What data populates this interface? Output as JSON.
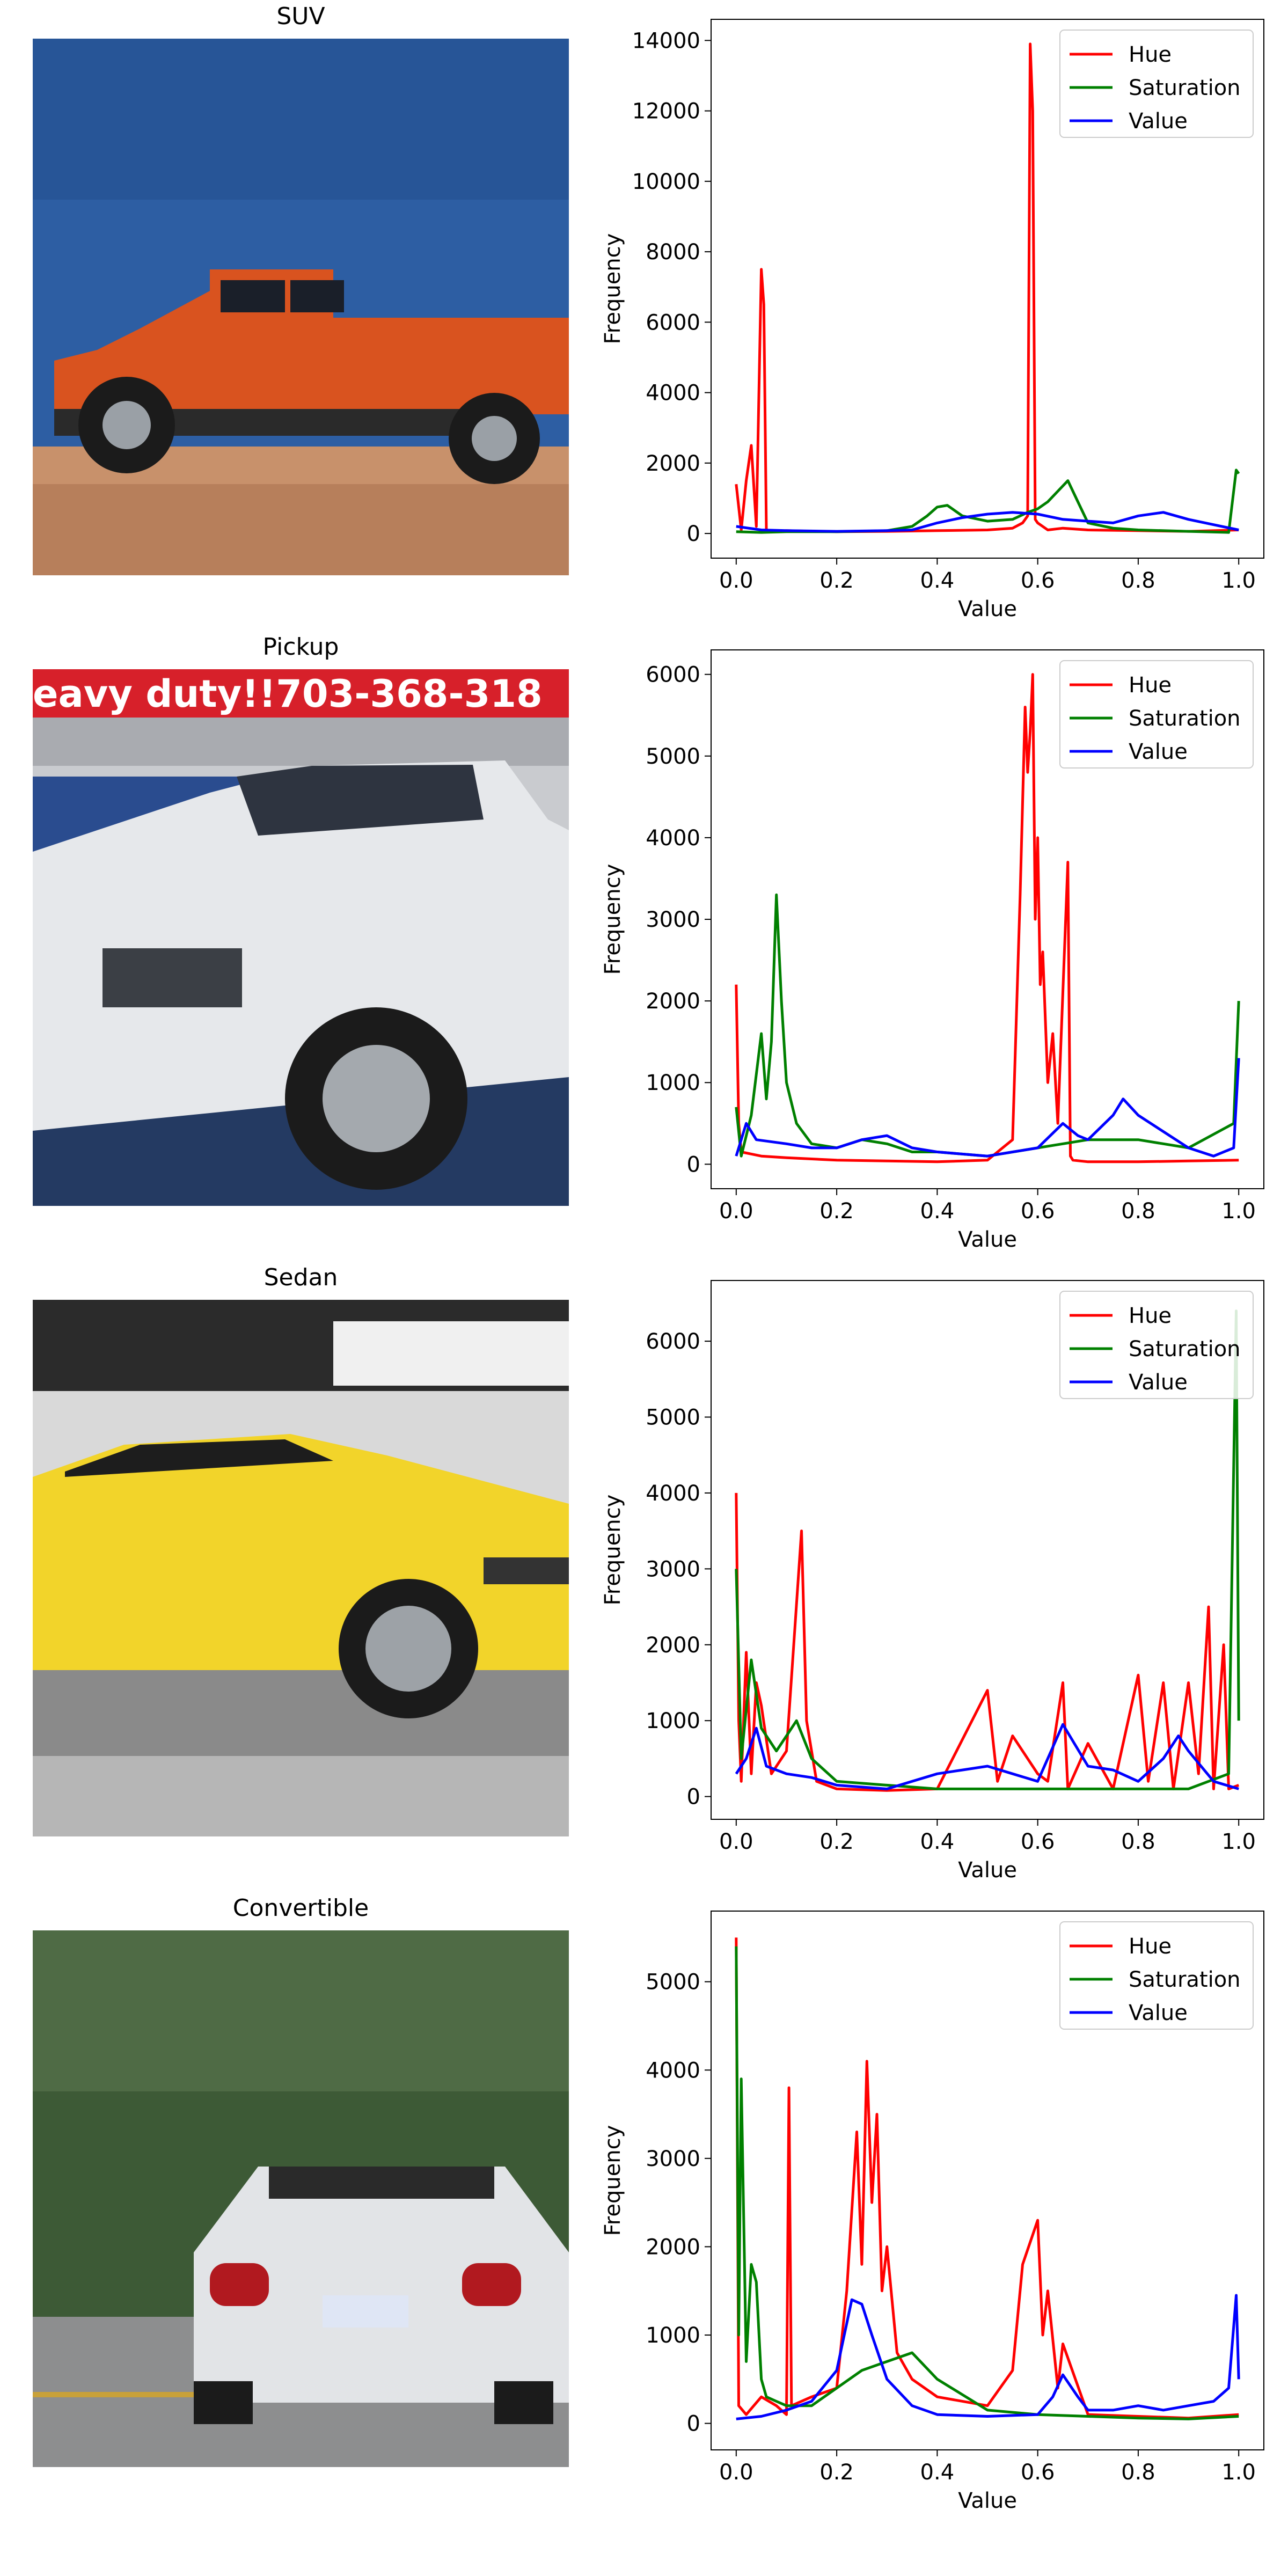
{
  "panels": [
    {
      "title": "SUV",
      "photo": "suv-photo",
      "colors": {
        "vehicle": "#d9531f",
        "sky": "#2d5ea3",
        "ground": "#c8916b"
      }
    },
    {
      "title": "Pickup",
      "photo": "pickup-photo",
      "banner_text": "eavy duty!!703-368-318",
      "colors": {
        "vehicle": "#e6e8eb",
        "banner": "#d7202a",
        "ground": "#243a62"
      }
    },
    {
      "title": "Sedan",
      "photo": "sedan-photo",
      "colors": {
        "vehicle": "#f2d42a",
        "floor": "#8a8a8a",
        "ceiling": "#2b2b2b"
      }
    },
    {
      "title": "Convertible",
      "photo": "convertible-photo",
      "colors": {
        "vehicle": "#e2e4e7",
        "trees": "#3d5a36",
        "road": "#8d8e8f"
      }
    }
  ],
  "colors": {
    "hue": "#ff0000",
    "saturation": "#008000",
    "value": "#0000ff",
    "legend_border": "#cccccc"
  },
  "chart_data": [
    {
      "type": "line",
      "xlabel": "Value",
      "ylabel": "Frequency",
      "xlim": [
        -0.05,
        1.05
      ],
      "ylim": [
        -700,
        14600
      ],
      "xticks": [
        "0.0",
        "0.2",
        "0.4",
        "0.6",
        "0.8",
        "1.0"
      ],
      "yticks": [
        0,
        2000,
        4000,
        6000,
        8000,
        10000,
        12000,
        14000
      ],
      "legend": "top-right",
      "series": [
        {
          "name": "Hue",
          "x": [
            0,
            0.01,
            0.02,
            0.03,
            0.04,
            0.05,
            0.055,
            0.06,
            0.07,
            0.1,
            0.2,
            0.3,
            0.4,
            0.5,
            0.55,
            0.57,
            0.58,
            0.585,
            0.59,
            0.595,
            0.6,
            0.62,
            0.65,
            0.7,
            0.8,
            0.9,
            1.0
          ],
          "values": [
            1400,
            100,
            1500,
            2500,
            200,
            7500,
            6500,
            100,
            50,
            80,
            50,
            60,
            80,
            100,
            150,
            300,
            500,
            13900,
            12000,
            400,
            300,
            100,
            150,
            100,
            80,
            60,
            100
          ]
        },
        {
          "name": "Saturation",
          "x": [
            0,
            0.05,
            0.1,
            0.2,
            0.3,
            0.35,
            0.38,
            0.4,
            0.42,
            0.45,
            0.5,
            0.55,
            0.58,
            0.6,
            0.62,
            0.64,
            0.66,
            0.68,
            0.7,
            0.75,
            0.8,
            0.9,
            0.98,
            0.995,
            1.0
          ],
          "values": [
            50,
            30,
            50,
            50,
            80,
            200,
            500,
            750,
            800,
            500,
            350,
            400,
            600,
            700,
            900,
            1200,
            1500,
            900,
            300,
            150,
            100,
            60,
            30,
            1800,
            1700
          ]
        },
        {
          "name": "Value",
          "x": [
            0,
            0.05,
            0.1,
            0.2,
            0.3,
            0.35,
            0.4,
            0.45,
            0.5,
            0.55,
            0.6,
            0.65,
            0.7,
            0.75,
            0.8,
            0.85,
            0.9,
            0.95,
            1.0
          ],
          "values": [
            200,
            100,
            80,
            60,
            80,
            100,
            300,
            450,
            550,
            600,
            550,
            400,
            350,
            300,
            500,
            600,
            400,
            250,
            100
          ]
        }
      ]
    },
    {
      "type": "line",
      "xlabel": "Value",
      "ylabel": "Frequency",
      "xlim": [
        -0.05,
        1.05
      ],
      "ylim": [
        -300,
        6300
      ],
      "xticks": [
        "0.0",
        "0.2",
        "0.4",
        "0.6",
        "0.8",
        "1.0"
      ],
      "yticks": [
        0,
        1000,
        2000,
        3000,
        4000,
        5000,
        6000
      ],
      "legend": "top-right",
      "series": [
        {
          "name": "Hue",
          "x": [
            0,
            0.005,
            0.01,
            0.05,
            0.1,
            0.2,
            0.3,
            0.4,
            0.5,
            0.55,
            0.565,
            0.575,
            0.58,
            0.585,
            0.59,
            0.595,
            0.6,
            0.605,
            0.61,
            0.62,
            0.63,
            0.64,
            0.66,
            0.665,
            0.67,
            0.7,
            0.8,
            0.9,
            1.0
          ],
          "values": [
            2200,
            500,
            150,
            100,
            80,
            50,
            40,
            30,
            50,
            300,
            3300,
            5600,
            4800,
            5300,
            6000,
            3000,
            4000,
            2200,
            2600,
            1000,
            1600,
            500,
            3700,
            100,
            50,
            30,
            30,
            40,
            50
          ]
        },
        {
          "name": "Saturation",
          "x": [
            0,
            0.01,
            0.03,
            0.05,
            0.06,
            0.07,
            0.08,
            0.09,
            0.1,
            0.12,
            0.15,
            0.2,
            0.25,
            0.3,
            0.35,
            0.4,
            0.5,
            0.6,
            0.65,
            0.7,
            0.8,
            0.9,
            0.99,
            1.0
          ],
          "values": [
            700,
            100,
            600,
            1600,
            800,
            1500,
            3300,
            2000,
            1000,
            500,
            250,
            200,
            300,
            250,
            150,
            150,
            100,
            200,
            250,
            300,
            300,
            200,
            500,
            2000
          ]
        },
        {
          "name": "Value",
          "x": [
            0,
            0.02,
            0.04,
            0.1,
            0.15,
            0.2,
            0.25,
            0.3,
            0.35,
            0.4,
            0.5,
            0.55,
            0.6,
            0.65,
            0.68,
            0.7,
            0.75,
            0.77,
            0.8,
            0.85,
            0.9,
            0.95,
            0.99,
            1.0
          ],
          "values": [
            100,
            500,
            300,
            250,
            200,
            200,
            300,
            350,
            200,
            150,
            100,
            150,
            200,
            500,
            350,
            300,
            600,
            800,
            600,
            400,
            200,
            100,
            200,
            1300
          ]
        }
      ]
    },
    {
      "type": "line",
      "xlabel": "Value",
      "ylabel": "Frequency",
      "xlim": [
        -0.05,
        1.05
      ],
      "ylim": [
        -300,
        6800
      ],
      "xticks": [
        "0.0",
        "0.2",
        "0.4",
        "0.6",
        "0.8",
        "1.0"
      ],
      "yticks": [
        0,
        1000,
        2000,
        3000,
        4000,
        5000,
        6000
      ],
      "legend": "top-right",
      "series": [
        {
          "name": "Hue",
          "x": [
            0,
            0.005,
            0.01,
            0.02,
            0.03,
            0.04,
            0.05,
            0.07,
            0.1,
            0.13,
            0.14,
            0.16,
            0.2,
            0.3,
            0.4,
            0.5,
            0.52,
            0.55,
            0.6,
            0.62,
            0.65,
            0.66,
            0.7,
            0.75,
            0.8,
            0.82,
            0.85,
            0.87,
            0.9,
            0.92,
            0.94,
            0.95,
            0.97,
            0.98,
            1.0
          ],
          "values": [
            4000,
            1000,
            200,
            1900,
            300,
            1500,
            1200,
            300,
            600,
            3500,
            1000,
            200,
            100,
            80,
            100,
            1400,
            200,
            800,
            300,
            200,
            1500,
            100,
            700,
            100,
            1600,
            200,
            1500,
            100,
            1500,
            300,
            2500,
            100,
            2000,
            100,
            150
          ]
        },
        {
          "name": "Saturation",
          "x": [
            0,
            0.01,
            0.03,
            0.05,
            0.08,
            0.1,
            0.12,
            0.15,
            0.2,
            0.3,
            0.4,
            0.5,
            0.6,
            0.7,
            0.8,
            0.9,
            0.98,
            0.995,
            1.0
          ],
          "values": [
            3000,
            500,
            1800,
            900,
            600,
            800,
            1000,
            500,
            200,
            150,
            100,
            100,
            100,
            100,
            100,
            100,
            300,
            6400,
            1000
          ]
        },
        {
          "name": "Value",
          "x": [
            0,
            0.02,
            0.04,
            0.06,
            0.1,
            0.15,
            0.2,
            0.3,
            0.4,
            0.45,
            0.5,
            0.55,
            0.6,
            0.65,
            0.7,
            0.75,
            0.8,
            0.85,
            0.88,
            0.9,
            0.95,
            1.0
          ],
          "values": [
            300,
            500,
            900,
            400,
            300,
            250,
            150,
            100,
            300,
            350,
            400,
            300,
            200,
            950,
            400,
            350,
            200,
            500,
            800,
            600,
            200,
            100
          ]
        }
      ]
    },
    {
      "type": "line",
      "xlabel": "Value",
      "ylabel": "Frequency",
      "xlim": [
        -0.05,
        1.05
      ],
      "ylim": [
        -300,
        5800
      ],
      "xticks": [
        "0.0",
        "0.2",
        "0.4",
        "0.6",
        "0.8",
        "1.0"
      ],
      "yticks": [
        0,
        1000,
        2000,
        3000,
        4000,
        5000
      ],
      "legend": "top-right",
      "series": [
        {
          "name": "Hue",
          "x": [
            0,
            0.005,
            0.02,
            0.05,
            0.08,
            0.1,
            0.105,
            0.11,
            0.15,
            0.2,
            0.22,
            0.24,
            0.25,
            0.26,
            0.27,
            0.28,
            0.29,
            0.3,
            0.32,
            0.35,
            0.4,
            0.5,
            0.55,
            0.57,
            0.6,
            0.61,
            0.62,
            0.64,
            0.65,
            0.7,
            0.8,
            0.9,
            1.0
          ],
          "values": [
            5500,
            200,
            100,
            300,
            200,
            100,
            3800,
            200,
            300,
            400,
            1500,
            3300,
            1800,
            4100,
            2500,
            3500,
            1500,
            2000,
            800,
            500,
            300,
            200,
            600,
            1800,
            2300,
            1000,
            1500,
            400,
            900,
            100,
            80,
            60,
            100
          ]
        },
        {
          "name": "Saturation",
          "x": [
            0,
            0.005,
            0.01,
            0.02,
            0.03,
            0.04,
            0.05,
            0.06,
            0.08,
            0.1,
            0.15,
            0.2,
            0.25,
            0.3,
            0.35,
            0.4,
            0.5,
            0.6,
            0.7,
            0.8,
            0.9,
            1.0
          ],
          "values": [
            5400,
            1000,
            3900,
            700,
            1800,
            1600,
            500,
            300,
            250,
            200,
            200,
            400,
            600,
            700,
            800,
            500,
            150,
            100,
            80,
            60,
            50,
            80
          ]
        },
        {
          "name": "Value",
          "x": [
            0,
            0.05,
            0.1,
            0.15,
            0.2,
            0.23,
            0.25,
            0.27,
            0.3,
            0.35,
            0.4,
            0.5,
            0.6,
            0.63,
            0.65,
            0.68,
            0.7,
            0.75,
            0.8,
            0.85,
            0.9,
            0.95,
            0.98,
            0.995,
            1.0
          ],
          "values": [
            50,
            80,
            150,
            250,
            600,
            1400,
            1350,
            1000,
            500,
            200,
            100,
            80,
            100,
            300,
            550,
            300,
            150,
            150,
            200,
            150,
            200,
            250,
            400,
            1450,
            500
          ]
        }
      ]
    }
  ]
}
